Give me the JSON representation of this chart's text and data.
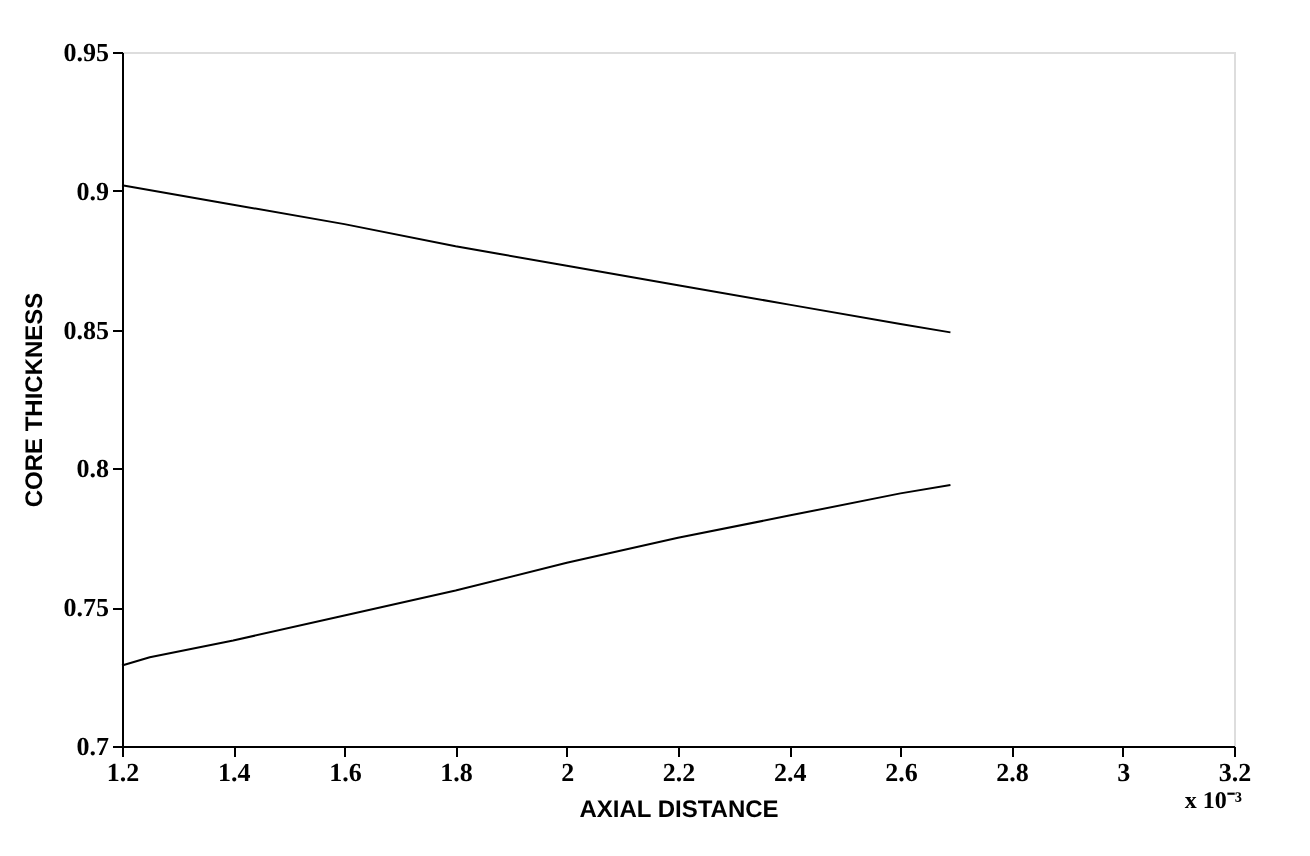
{
  "chart_data": {
    "type": "line",
    "xlabel": "AXIAL DISTANCE",
    "ylabel": "CORE THICKNESS",
    "annotations": [
      "x 10⁻³"
    ],
    "series": [
      {
        "color": "#000000",
        "x": [
          1.2,
          1.4,
          1.6,
          1.8,
          2.0,
          2.2,
          2.4,
          2.6,
          2.69
        ],
        "values": [
          0.902,
          0.895,
          0.888,
          0.88,
          0.873,
          0.866,
          0.859,
          0.852,
          0.849
        ]
      },
      {
        "color": "#000000",
        "x": [
          1.2,
          1.25,
          1.4,
          1.6,
          1.8,
          2.0,
          2.2,
          2.4,
          2.6,
          2.69
        ],
        "values": [
          0.729,
          0.732,
          0.738,
          0.747,
          0.756,
          0.766,
          0.775,
          0.783,
          0.791,
          0.794
        ]
      }
    ],
    "xlim": [
      1.2,
      3.2
    ],
    "xticks": [
      1.2,
      1.4,
      1.6,
      1.8,
      2,
      2.2,
      2.4,
      2.6,
      2.8,
      3,
      3.2
    ],
    "ylim": [
      0.7,
      0.95
    ],
    "yticks": [
      0.7,
      0.75,
      0.8,
      0.85,
      0.9,
      0.95
    ],
    "grid": false,
    "legend": false,
    "marker": "none",
    "line_style": "solid"
  }
}
